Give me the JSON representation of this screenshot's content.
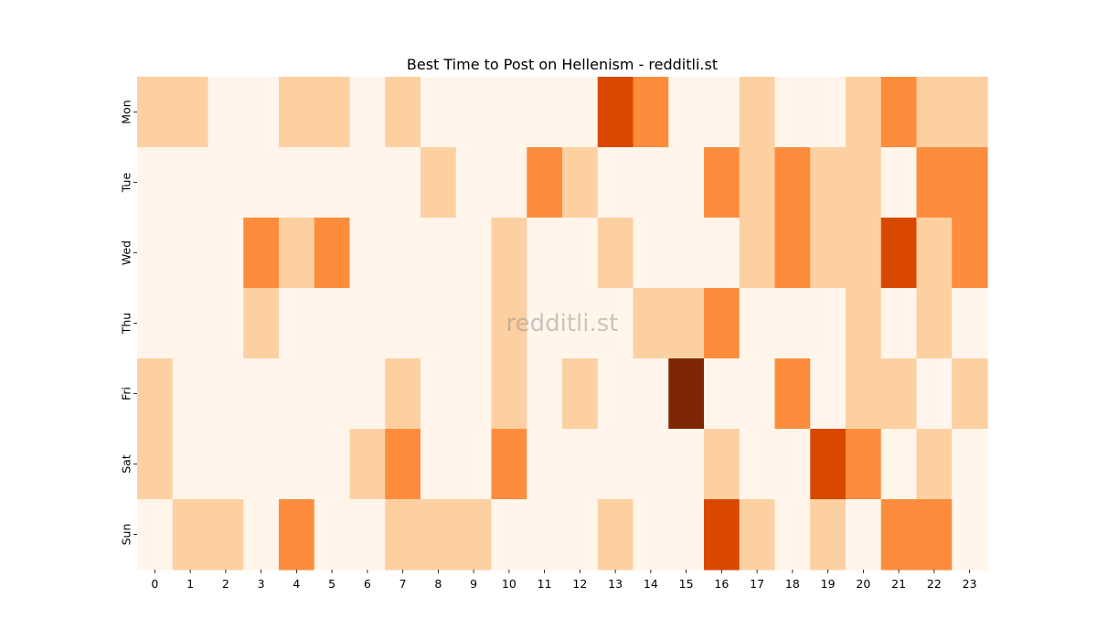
{
  "chart_data": {
    "type": "heatmap",
    "title": "Best Time to Post on Hellenism - redditli.st",
    "watermark": "redditli.st",
    "x_categories": [
      "0",
      "1",
      "2",
      "3",
      "4",
      "5",
      "6",
      "7",
      "8",
      "9",
      "10",
      "11",
      "12",
      "13",
      "14",
      "15",
      "16",
      "17",
      "18",
      "19",
      "20",
      "21",
      "22",
      "23"
    ],
    "y_categories": [
      "Mon",
      "Tue",
      "Wed",
      "Thu",
      "Fri",
      "Sat",
      "Sun"
    ],
    "colormap": "Oranges",
    "value_range": [
      0,
      5
    ],
    "palette": [
      "#fff5eb",
      "#fdd0a2",
      "#fd8d3c",
      "#d94801",
      "#7f2704"
    ],
    "values": [
      [
        1,
        1,
        0,
        0,
        1,
        1,
        0,
        1,
        0,
        0,
        0,
        0,
        0,
        3,
        2,
        0,
        0,
        1,
        0,
        0,
        1,
        2,
        1,
        1
      ],
      [
        0,
        0,
        0,
        0,
        0,
        0,
        0,
        0,
        1,
        0,
        0,
        2,
        1,
        0,
        0,
        0,
        2,
        1,
        2,
        1,
        1,
        0,
        2,
        2
      ],
      [
        0,
        0,
        0,
        2,
        1,
        2,
        0,
        0,
        0,
        0,
        1,
        0,
        0,
        1,
        0,
        0,
        0,
        1,
        2,
        1,
        1,
        3,
        1,
        2
      ],
      [
        0,
        0,
        0,
        1,
        0,
        0,
        0,
        0,
        0,
        0,
        1,
        0,
        0,
        0,
        1,
        1,
        2,
        0,
        0,
        0,
        1,
        0,
        1,
        0
      ],
      [
        1,
        0,
        0,
        0,
        0,
        0,
        0,
        1,
        0,
        0,
        1,
        0,
        1,
        0,
        0,
        4,
        0,
        0,
        2,
        0,
        1,
        1,
        0,
        1
      ],
      [
        1,
        0,
        0,
        0,
        0,
        0,
        1,
        2,
        0,
        0,
        2,
        0,
        0,
        0,
        0,
        0,
        1,
        0,
        0,
        3,
        2,
        0,
        1,
        0
      ],
      [
        0,
        1,
        1,
        0,
        2,
        0,
        0,
        1,
        1,
        1,
        0,
        0,
        0,
        1,
        0,
        0,
        3,
        1,
        0,
        1,
        0,
        2,
        2,
        0
      ]
    ]
  }
}
